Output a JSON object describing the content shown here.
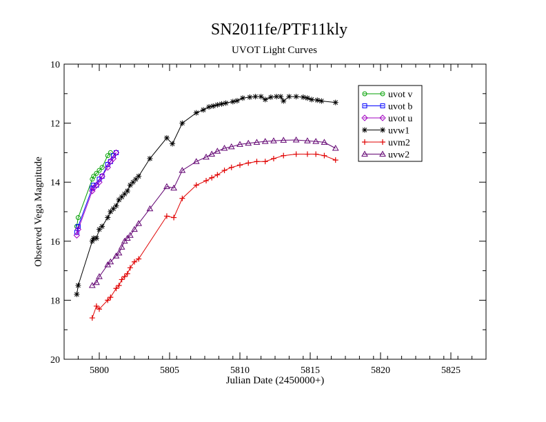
{
  "chart_data": {
    "type": "scatter",
    "title": "SN2011fe/PTF11kly",
    "subtitle": "UVOT Light Curves",
    "xlabel": "Julian Date (2450000+)",
    "ylabel": "Observed Vega Magnitude",
    "xlim": [
      5797.5,
      5827.5
    ],
    "ylim": [
      10,
      20
    ],
    "y_inverted": true,
    "x_ticks": [
      5800,
      5805,
      5810,
      5815,
      5820,
      5825
    ],
    "y_ticks": [
      10,
      12,
      14,
      16,
      18,
      20
    ],
    "grid": false,
    "legend_position": "top-right",
    "series": [
      {
        "name": "uvot v",
        "color": "#00a000",
        "marker": "circle",
        "x": [
          5798.4,
          5798.5,
          5799.5,
          5799.6,
          5799.8,
          5800.0,
          5800.2,
          5800.6,
          5800.8
        ],
        "y": [
          15.5,
          15.2,
          13.9,
          13.8,
          13.7,
          13.6,
          13.5,
          13.1,
          13.0
        ]
      },
      {
        "name": "uvot b",
        "color": "#0000ff",
        "marker": "square",
        "x": [
          5798.4,
          5798.5,
          5799.5,
          5799.6,
          5799.8,
          5800.0,
          5800.2,
          5800.6,
          5800.8,
          5801.0,
          5801.2
        ],
        "y": [
          15.7,
          15.5,
          14.2,
          14.1,
          14.1,
          13.9,
          13.8,
          13.4,
          13.3,
          13.1,
          13.0
        ]
      },
      {
        "name": "uvot u",
        "color": "#a000c0",
        "marker": "diamond",
        "x": [
          5798.4,
          5798.5,
          5799.5,
          5799.6,
          5799.8,
          5800.0,
          5800.2,
          5800.6,
          5800.8,
          5801.0,
          5801.2
        ],
        "y": [
          15.8,
          15.6,
          14.3,
          14.2,
          14.1,
          14.0,
          13.8,
          13.5,
          13.3,
          13.2,
          13.0
        ]
      },
      {
        "name": "uvw1",
        "color": "#000000",
        "marker": "star",
        "x": [
          5798.4,
          5798.5,
          5799.5,
          5799.6,
          5799.8,
          5800.0,
          5800.2,
          5800.6,
          5800.8,
          5801.0,
          5801.2,
          5801.4,
          5801.6,
          5801.8,
          5802.0,
          5802.2,
          5802.4,
          5802.6,
          5802.8,
          5803.6,
          5804.8,
          5805.2,
          5805.9,
          5806.9,
          5807.4,
          5807.8,
          5808.1,
          5808.4,
          5808.7,
          5809.0,
          5809.5,
          5809.8,
          5810.2,
          5810.7,
          5811.1,
          5811.5,
          5811.8,
          5812.2,
          5812.6,
          5812.9,
          5813.1,
          5813.5,
          5814.0,
          5814.5,
          5814.8,
          5815.1,
          5815.5,
          5815.8,
          5816.8
        ],
        "y": [
          17.8,
          17.5,
          16.0,
          15.9,
          15.9,
          15.6,
          15.5,
          15.2,
          15.0,
          14.9,
          14.8,
          14.6,
          14.5,
          14.4,
          14.3,
          14.1,
          14.0,
          13.9,
          13.8,
          13.2,
          12.5,
          12.7,
          12.0,
          11.65,
          11.55,
          11.45,
          11.42,
          11.38,
          11.35,
          11.32,
          11.27,
          11.24,
          11.15,
          11.12,
          11.1,
          11.1,
          11.2,
          11.12,
          11.1,
          11.1,
          11.25,
          11.1,
          11.1,
          11.12,
          11.15,
          11.2,
          11.22,
          11.25,
          11.3
        ]
      },
      {
        "name": "uvm2",
        "color": "#e00000",
        "marker": "plus",
        "x": [
          5799.5,
          5799.8,
          5800.0,
          5800.6,
          5800.8,
          5801.2,
          5801.4,
          5801.6,
          5801.8,
          5802.0,
          5802.2,
          5802.5,
          5802.8,
          5804.8,
          5805.3,
          5805.9,
          5806.9,
          5807.6,
          5808.0,
          5808.4,
          5808.9,
          5809.4,
          5810.0,
          5810.6,
          5811.2,
          5811.8,
          5812.4,
          5813.1,
          5814.0,
          5814.8,
          5815.4,
          5816.0,
          5816.8
        ],
        "y": [
          18.6,
          18.2,
          18.3,
          18.0,
          17.9,
          17.6,
          17.5,
          17.3,
          17.2,
          17.1,
          16.9,
          16.7,
          16.6,
          15.15,
          15.2,
          14.55,
          14.1,
          13.95,
          13.85,
          13.75,
          13.6,
          13.5,
          13.42,
          13.35,
          13.3,
          13.3,
          13.2,
          13.1,
          13.05,
          13.05,
          13.05,
          13.1,
          13.25
        ]
      },
      {
        "name": "uvw2",
        "color": "#600070",
        "marker": "triangle",
        "x": [
          5799.5,
          5799.8,
          5800.0,
          5800.6,
          5800.8,
          5801.2,
          5801.4,
          5801.6,
          5801.8,
          5802.0,
          5802.2,
          5802.5,
          5802.8,
          5803.6,
          5804.8,
          5805.3,
          5805.9,
          5806.9,
          5807.6,
          5808.0,
          5808.4,
          5808.9,
          5809.4,
          5810.0,
          5810.6,
          5811.2,
          5811.8,
          5812.4,
          5813.1,
          5814.0,
          5814.8,
          5815.4,
          5816.0,
          5816.8
        ],
        "y": [
          17.5,
          17.4,
          17.2,
          16.8,
          16.7,
          16.5,
          16.4,
          16.2,
          16.0,
          15.9,
          15.8,
          15.6,
          15.4,
          14.9,
          14.15,
          14.2,
          13.6,
          13.3,
          13.15,
          13.05,
          12.95,
          12.85,
          12.8,
          12.72,
          12.68,
          12.65,
          12.62,
          12.6,
          12.58,
          12.57,
          12.6,
          12.62,
          12.65,
          12.85
        ]
      }
    ]
  }
}
